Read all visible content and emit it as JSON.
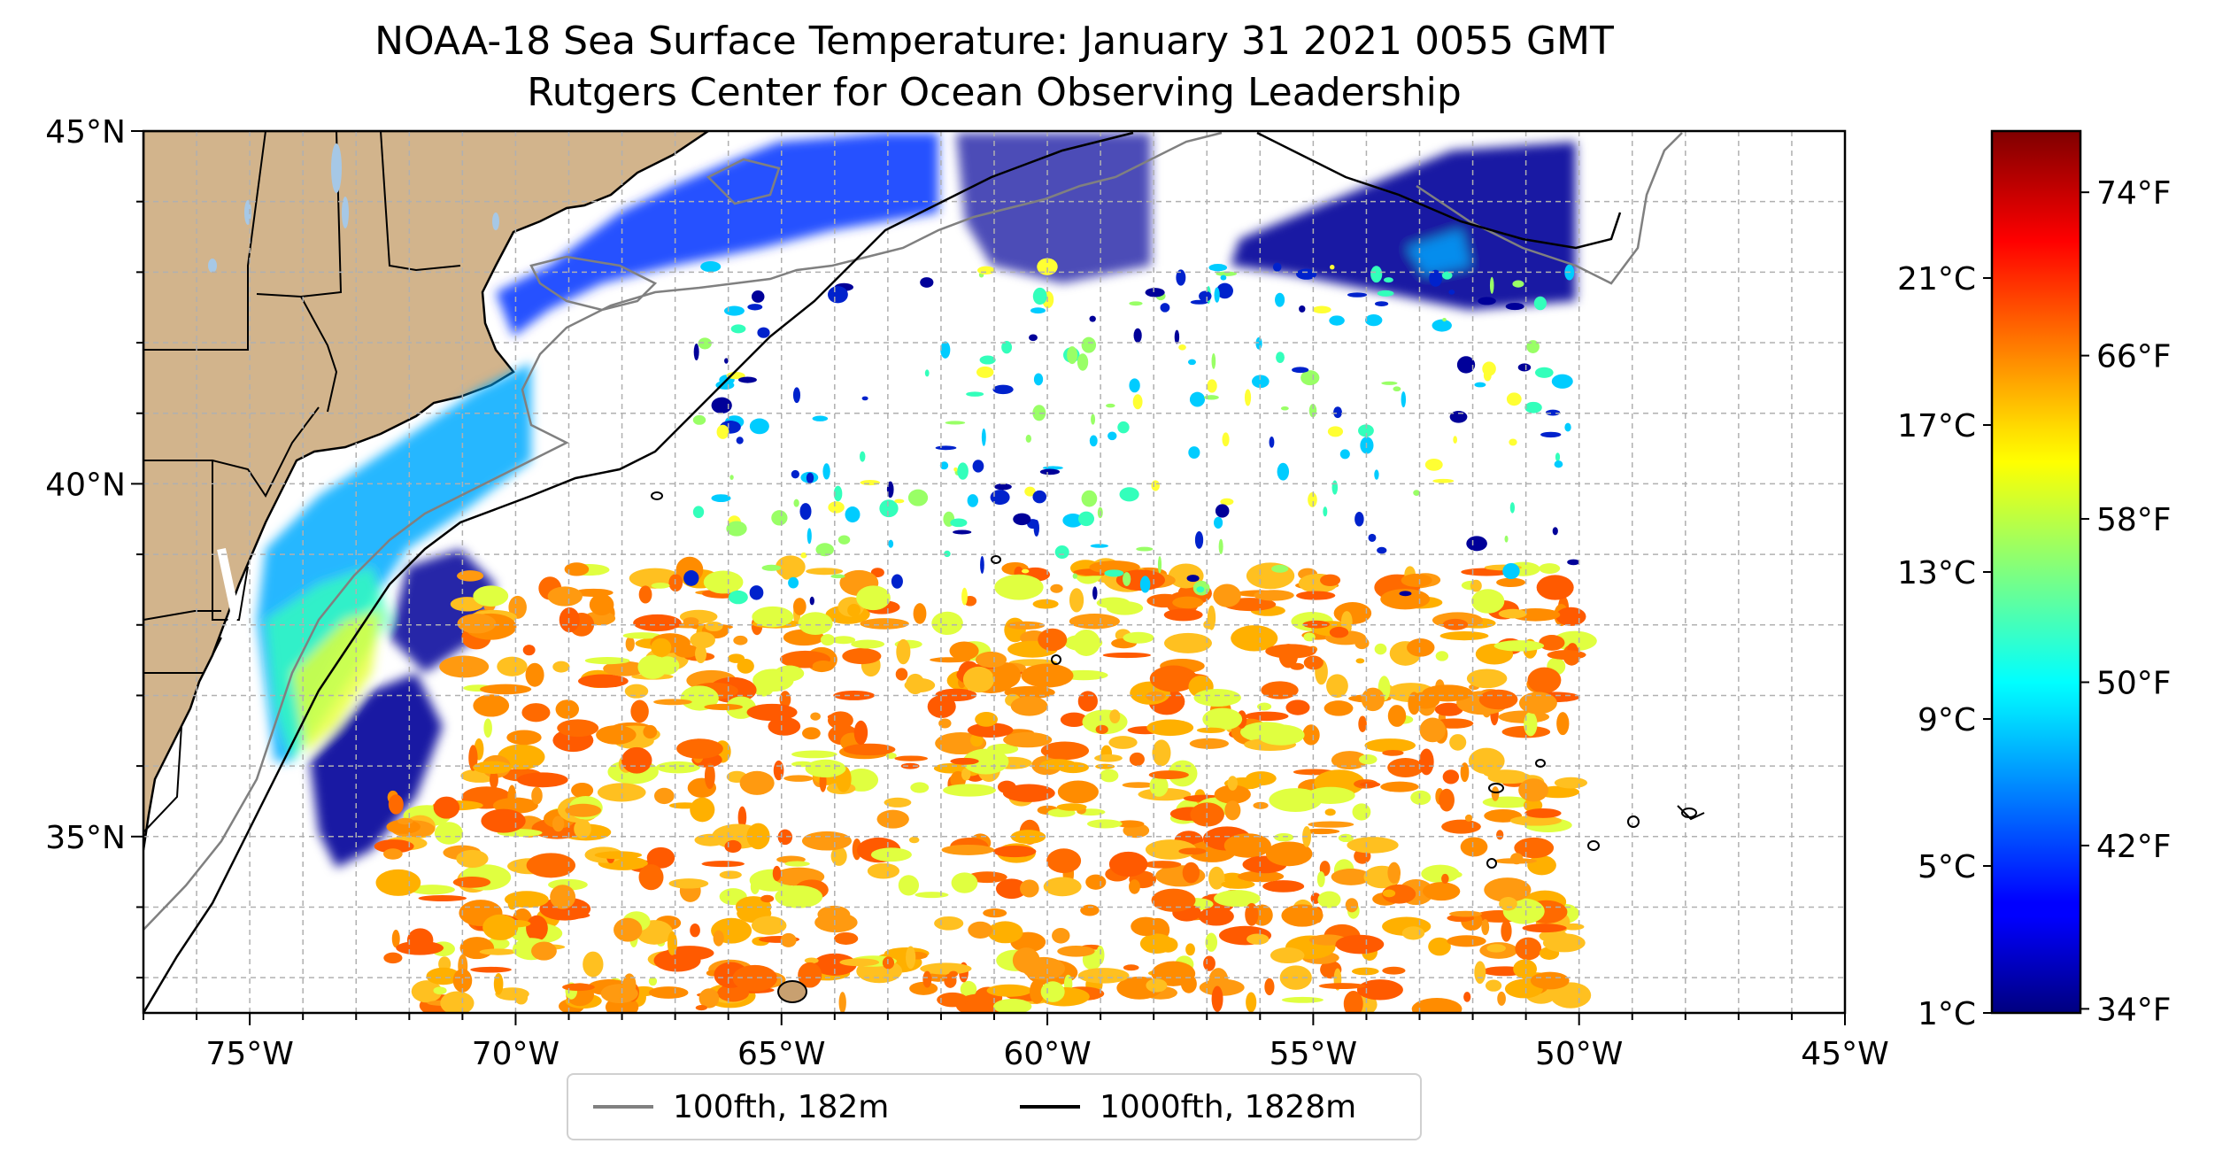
{
  "title": {
    "line1": "NOAA-18 Sea Surface Temperature: January 31 2021 0055 GMT",
    "line2": "Rutgers Center for Ocean Observing Leadership"
  },
  "map": {
    "lon_range": [
      -77,
      -45
    ],
    "lat_range": [
      32.5,
      45
    ],
    "lon_ticks": [
      {
        "value": -75,
        "label": "75°W"
      },
      {
        "value": -70,
        "label": "70°W"
      },
      {
        "value": -65,
        "label": "65°W"
      },
      {
        "value": -60,
        "label": "60°W"
      },
      {
        "value": -55,
        "label": "55°W"
      },
      {
        "value": -50,
        "label": "50°W"
      },
      {
        "value": -45,
        "label": "45°W"
      }
    ],
    "lat_ticks": [
      {
        "value": 45,
        "label": "45°N"
      },
      {
        "value": 40,
        "label": "40°N"
      },
      {
        "value": 35,
        "label": "35°N"
      }
    ],
    "grid": "dashed, 1 degree",
    "land_color": "#d2b48c",
    "lake_color": "#a6c8e6"
  },
  "colorbar": {
    "colormap": "jet",
    "celsius_ticks": [
      {
        "value": 1,
        "label": "1°C"
      },
      {
        "value": 5,
        "label": "5°C"
      },
      {
        "value": 9,
        "label": "9°C"
      },
      {
        "value": 13,
        "label": "13°C"
      },
      {
        "value": 17,
        "label": "17°C"
      },
      {
        "value": 21,
        "label": "21°C"
      }
    ],
    "fahrenheit_ticks": [
      {
        "value": 34,
        "label": "34°F"
      },
      {
        "value": 42,
        "label": "42°F"
      },
      {
        "value": 50,
        "label": "50°F"
      },
      {
        "value": 58,
        "label": "58°F"
      },
      {
        "value": 66,
        "label": "66°F"
      },
      {
        "value": 74,
        "label": "74°F"
      }
    ],
    "range_celsius": [
      1,
      25
    ]
  },
  "legend": {
    "items": [
      {
        "label": "100fth, 182m",
        "color": "#808080"
      },
      {
        "label": "1000fth, 1828m",
        "color": "#000000"
      }
    ]
  }
}
